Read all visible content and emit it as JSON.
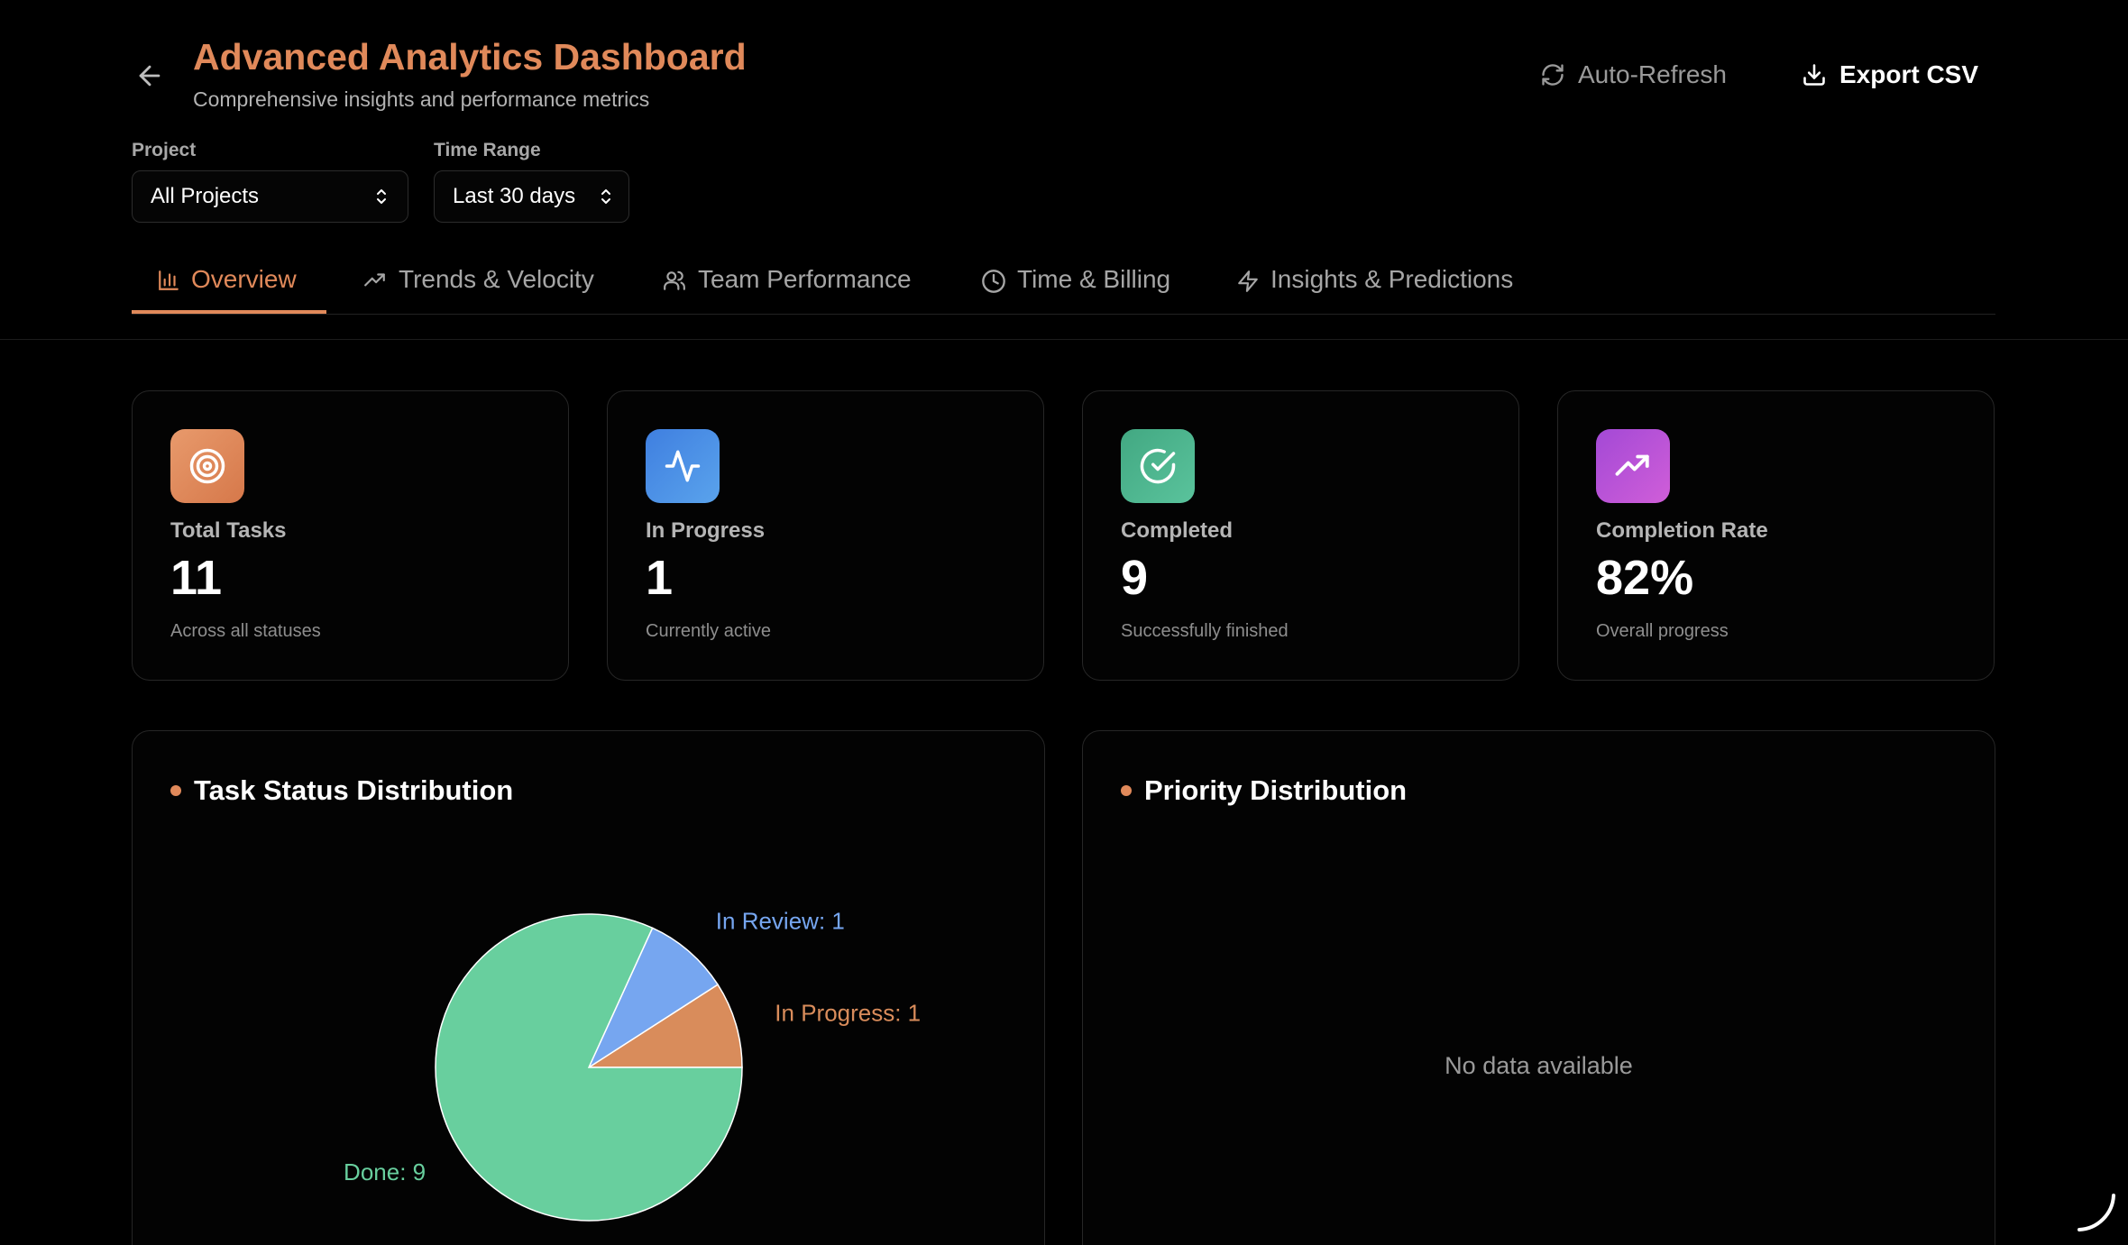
{
  "header": {
    "title": "Advanced Analytics Dashboard",
    "subtitle": "Comprehensive insights and performance metrics",
    "auto_refresh_label": "Auto-Refresh",
    "export_label": "Export CSV"
  },
  "filters": {
    "project_label": "Project",
    "project_value": "All Projects",
    "time_label": "Time Range",
    "time_value": "Last 30 days"
  },
  "tabs": [
    {
      "label": "Overview",
      "icon": "bar-chart-icon",
      "active": true
    },
    {
      "label": "Trends & Velocity",
      "icon": "trending-up-icon",
      "active": false
    },
    {
      "label": "Team Performance",
      "icon": "users-icon",
      "active": false
    },
    {
      "label": "Time & Billing",
      "icon": "clock-icon",
      "active": false
    },
    {
      "label": "Insights & Predictions",
      "icon": "zap-icon",
      "active": false
    }
  ],
  "stats": [
    {
      "label": "Total Tasks",
      "value": "11",
      "desc": "Across all statuses",
      "icon": "target-icon",
      "color": "#e0895a"
    },
    {
      "label": "In Progress",
      "value": "1",
      "desc": "Currently active",
      "icon": "activity-icon",
      "color": "#4a8fe6"
    },
    {
      "label": "Completed",
      "value": "9",
      "desc": "Successfully finished",
      "icon": "check-circle-icon",
      "color": "#4bb892"
    },
    {
      "label": "Completion Rate",
      "value": "82%",
      "desc": "Overall progress",
      "icon": "trending-up-icon",
      "color": "#b455dd"
    }
  ],
  "status_panel": {
    "title": "Task Status Distribution"
  },
  "priority_panel": {
    "title": "Priority Distribution",
    "empty_text": "No data available"
  },
  "chart_data": {
    "type": "pie",
    "title": "Task Status Distribution",
    "slices": [
      {
        "label": "In Progress: 1",
        "name": "In Progress",
        "value": 1,
        "color": "#d98c5b"
      },
      {
        "label": "In Review: 1",
        "name": "In Review",
        "value": 1,
        "color": "#76a6f0"
      },
      {
        "label": "Done: 9",
        "name": "Done",
        "value": 9,
        "color": "#68cf9e"
      }
    ]
  },
  "colors": {
    "accent": "#e0895a",
    "background": "#000000"
  }
}
